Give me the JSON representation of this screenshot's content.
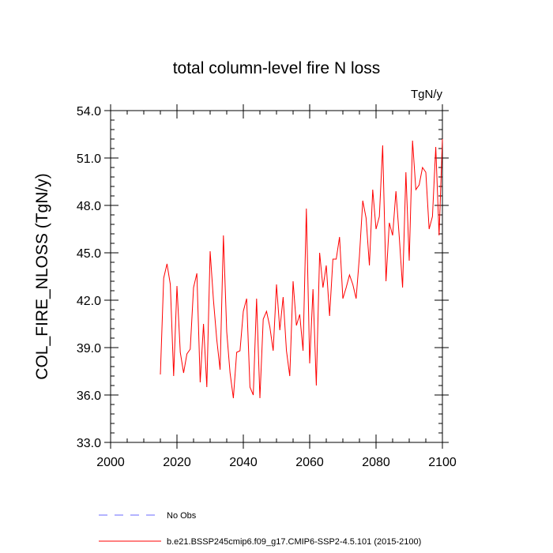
{
  "chart_data": {
    "type": "line",
    "title": "total column-level fire N loss",
    "units": "TgN/y",
    "ylabel": "COL_FIRE_NLOSS  (TgN/y)",
    "xlabel": "",
    "xlim": [
      2000,
      2100
    ],
    "ylim": [
      33.0,
      54.0
    ],
    "xticks": [
      2000,
      2020,
      2040,
      2060,
      2080,
      2100
    ],
    "yticks": [
      33.0,
      36.0,
      39.0,
      42.0,
      45.0,
      48.0,
      51.0,
      54.0
    ],
    "ytick_labels": [
      "33.0",
      "36.0",
      "39.0",
      "42.0",
      "45.0",
      "48.0",
      "51.0",
      "54.0"
    ],
    "legend": [
      {
        "label": "No Obs",
        "color": "#6a6aff",
        "style": "dashed"
      },
      {
        "label": "b.e21.BSSP245cmip6.f09_g17.CMIP6-SSP2-4.5.101 (2015-2100)",
        "color": "#ff0000",
        "style": "solid"
      }
    ],
    "series": [
      {
        "name": "b.e21.BSSP245cmip6.f09_g17.CMIP6-SSP2-4.5.101 (2015-2100)",
        "color": "#ff0000",
        "x": [
          2015,
          2016,
          2017,
          2018,
          2019,
          2020,
          2021,
          2022,
          2023,
          2024,
          2025,
          2026,
          2027,
          2028,
          2029,
          2030,
          2031,
          2032,
          2033,
          2034,
          2035,
          2036,
          2037,
          2038,
          2039,
          2040,
          2041,
          2042,
          2043,
          2044,
          2045,
          2046,
          2047,
          2048,
          2049,
          2050,
          2051,
          2052,
          2053,
          2054,
          2055,
          2056,
          2057,
          2058,
          2059,
          2060,
          2061,
          2062,
          2063,
          2064,
          2065,
          2066,
          2067,
          2068,
          2069,
          2070,
          2071,
          2072,
          2073,
          2074,
          2075,
          2076,
          2077,
          2078,
          2079,
          2080,
          2081,
          2082,
          2083,
          2084,
          2085,
          2086,
          2087,
          2088,
          2089,
          2090,
          2091,
          2092,
          2093,
          2094,
          2095,
          2096,
          2097,
          2098,
          2099,
          2100
        ],
        "values": [
          37.3,
          43.4,
          44.3,
          43.0,
          37.2,
          42.9,
          38.7,
          37.4,
          38.6,
          38.9,
          42.8,
          43.7,
          36.8,
          40.5,
          36.5,
          45.1,
          42.0,
          39.5,
          37.6,
          46.1,
          40.0,
          37.4,
          35.8,
          38.7,
          38.8,
          41.3,
          42.1,
          36.5,
          36.0,
          42.1,
          35.8,
          40.8,
          41.3,
          40.3,
          38.8,
          43.0,
          40.1,
          42.2,
          38.8,
          37.2,
          43.2,
          40.4,
          41.1,
          38.8,
          47.8,
          38.0,
          42.7,
          36.6,
          45.0,
          42.8,
          44.2,
          41.0,
          44.6,
          44.6,
          46.0,
          42.1,
          42.8,
          43.6,
          43.0,
          42.1,
          44.8,
          48.3,
          47.2,
          44.2,
          49.0,
          46.5,
          47.3,
          51.8,
          43.2,
          46.9,
          46.1,
          48.9,
          46.0,
          42.8,
          50.1,
          44.5,
          52.1,
          49.0,
          49.3,
          50.4,
          50.1,
          46.5,
          47.3,
          51.7,
          46.1,
          52.2
        ]
      },
      {
        "name": "No Obs",
        "color": "#6a6aff",
        "x": [],
        "values": []
      }
    ]
  }
}
